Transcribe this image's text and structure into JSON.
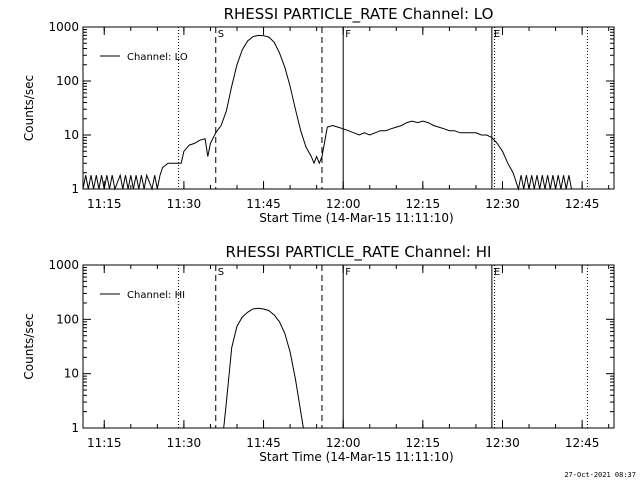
{
  "footer_stamp": "27-Oct-2021 08:37",
  "chart_data": [
    {
      "type": "line",
      "title": "RHESSI PARTICLE_RATE Channel: LO",
      "xlabel": "Start Time (14-Mar-15 11:11:10)",
      "ylabel": "Counts/sec",
      "yscale": "log",
      "xlim": [
        "11:11",
        "12:51"
      ],
      "ylim": [
        1,
        1000
      ],
      "x_ticks": [
        "11:15",
        "11:30",
        "11:45",
        "12:00",
        "12:15",
        "12:30",
        "12:45"
      ],
      "y_ticks": [
        "1",
        "10",
        "100",
        "1000"
      ],
      "legend": {
        "label": "Channel: LO",
        "position": "top-left"
      },
      "markers": [
        {
          "label": "",
          "time": "11:29",
          "style": "dotted"
        },
        {
          "label": "S",
          "time": "11:36",
          "style": "dashed"
        },
        {
          "label": "",
          "time": "11:56",
          "style": "dashed"
        },
        {
          "label": "F",
          "time": "12:00",
          "style": "solid"
        },
        {
          "label": "E",
          "time": "12:28",
          "style": "solid"
        },
        {
          "label": "",
          "time": "12:28.5",
          "style": "dotted"
        },
        {
          "label": "",
          "time": "12:46",
          "style": "dotted"
        }
      ],
      "series": [
        {
          "name": "Channel: LO",
          "points": [
            [
              "11:11",
              1
            ],
            [
              "11:11.5",
              1.8
            ],
            [
              "11:12",
              1
            ],
            [
              "11:12.5",
              1.8
            ],
            [
              "11:13",
              1
            ],
            [
              "11:13.5",
              1.8
            ],
            [
              "11:14",
              1
            ],
            [
              "11:14.5",
              1.8
            ],
            [
              "11:15",
              1
            ],
            [
              "11:15.5",
              1.8
            ],
            [
              "11:16",
              1
            ],
            [
              "11:16.5",
              1.8
            ],
            [
              "11:17",
              1
            ],
            [
              "11:18",
              1.8
            ],
            [
              "11:18.5",
              1
            ],
            [
              "11:19",
              1.8
            ],
            [
              "11:19.5",
              1
            ],
            [
              "11:20",
              1.8
            ],
            [
              "11:20.5",
              1
            ],
            [
              "11:21",
              1.8
            ],
            [
              "11:21.5",
              1
            ],
            [
              "11:22",
              1.8
            ],
            [
              "11:22.5",
              1
            ],
            [
              "11:23",
              1.8
            ],
            [
              "11:24",
              1
            ],
            [
              "11:24.5",
              1.8
            ],
            [
              "11:25",
              1
            ],
            [
              "11:25.5",
              1.8
            ],
            [
              "11:26",
              2.5
            ],
            [
              "11:27",
              3
            ],
            [
              "11:28",
              3
            ],
            [
              "11:29",
              3
            ],
            [
              "11:29.5",
              3
            ],
            [
              "11:30",
              5
            ],
            [
              "11:31",
              6.5
            ],
            [
              "11:32",
              7
            ],
            [
              "11:33",
              8
            ],
            [
              "11:34",
              8.5
            ],
            [
              "11:34.5",
              4
            ],
            [
              "11:35",
              7
            ],
            [
              "11:36",
              11
            ],
            [
              "11:37",
              15
            ],
            [
              "11:38",
              28
            ],
            [
              "11:39",
              80
            ],
            [
              "11:40",
              200
            ],
            [
              "11:41",
              380
            ],
            [
              "11:42",
              550
            ],
            [
              "11:43",
              660
            ],
            [
              "11:44",
              700
            ],
            [
              "11:45",
              690
            ],
            [
              "11:46",
              650
            ],
            [
              "11:47",
              520
            ],
            [
              "11:48",
              330
            ],
            [
              "11:49",
              180
            ],
            [
              "11:50",
              80
            ],
            [
              "11:51",
              30
            ],
            [
              "11:52",
              12
            ],
            [
              "11:53",
              6
            ],
            [
              "11:54",
              4
            ],
            [
              "11:54.5",
              3
            ],
            [
              "11:55",
              4
            ],
            [
              "11:55.5",
              3
            ],
            [
              "11:56",
              4
            ],
            [
              "11:57",
              14
            ],
            [
              "11:58",
              15
            ],
            [
              "11:59",
              14
            ],
            [
              "12:00",
              13
            ],
            [
              "12:01",
              12
            ],
            [
              "12:02",
              11
            ],
            [
              "12:03",
              10
            ],
            [
              "12:04",
              11
            ],
            [
              "12:05",
              10
            ],
            [
              "12:06",
              11
            ],
            [
              "12:07",
              12
            ],
            [
              "12:08",
              12
            ],
            [
              "12:09",
              13
            ],
            [
              "12:10",
              14
            ],
            [
              "12:11",
              15
            ],
            [
              "12:12",
              17
            ],
            [
              "12:13",
              18
            ],
            [
              "12:14",
              17
            ],
            [
              "12:15",
              18
            ],
            [
              "12:16",
              17
            ],
            [
              "12:17",
              15
            ],
            [
              "12:18",
              14
            ],
            [
              "12:19",
              13
            ],
            [
              "12:20",
              12
            ],
            [
              "12:21",
              12
            ],
            [
              "12:22",
              11
            ],
            [
              "12:23",
              11
            ],
            [
              "12:24",
              11
            ],
            [
              "12:25",
              11
            ],
            [
              "12:26",
              10
            ],
            [
              "12:27",
              10
            ],
            [
              "12:28",
              9
            ],
            [
              "12:29",
              7
            ],
            [
              "12:30",
              5
            ],
            [
              "12:31",
              3
            ],
            [
              "12:32",
              2
            ],
            [
              "12:33",
              1
            ],
            [
              "12:33.5",
              1.8
            ],
            [
              "12:34",
              1
            ],
            [
              "12:34.5",
              1.8
            ],
            [
              "12:35",
              1
            ],
            [
              "12:35.5",
              1.8
            ],
            [
              "12:36",
              1
            ],
            [
              "12:36.5",
              1.8
            ],
            [
              "12:37",
              1
            ],
            [
              "12:37.5",
              1.8
            ],
            [
              "12:38",
              1
            ],
            [
              "12:38.5",
              1.8
            ],
            [
              "12:39",
              1
            ],
            [
              "12:39.5",
              1.8
            ],
            [
              "12:40",
              1
            ],
            [
              "12:40.5",
              1.8
            ],
            [
              "12:41",
              1
            ],
            [
              "12:41.5",
              1.8
            ],
            [
              "12:42",
              1
            ],
            [
              "12:42.5",
              1.8
            ],
            [
              "12:43",
              1
            ]
          ]
        }
      ]
    },
    {
      "type": "line",
      "title": "RHESSI PARTICLE_RATE Channel: HI",
      "xlabel": "Start Time (14-Mar-15 11:11:10)",
      "ylabel": "Counts/sec",
      "yscale": "log",
      "xlim": [
        "11:11",
        "12:51"
      ],
      "ylim": [
        1,
        1000
      ],
      "x_ticks": [
        "11:15",
        "11:30",
        "11:45",
        "12:00",
        "12:15",
        "12:30",
        "12:45"
      ],
      "y_ticks": [
        "1",
        "10",
        "100",
        "1000"
      ],
      "legend": {
        "label": "Channel: HI",
        "position": "top-left"
      },
      "markers": [
        {
          "label": "",
          "time": "11:29",
          "style": "dotted"
        },
        {
          "label": "S",
          "time": "11:36",
          "style": "dashed"
        },
        {
          "label": "",
          "time": "11:56",
          "style": "dashed"
        },
        {
          "label": "F",
          "time": "12:00",
          "style": "solid"
        },
        {
          "label": "E",
          "time": "12:28",
          "style": "solid"
        },
        {
          "label": "",
          "time": "12:28.5",
          "style": "dotted"
        },
        {
          "label": "",
          "time": "12:46",
          "style": "dotted"
        }
      ],
      "series": [
        {
          "name": "Channel: HI",
          "points": [
            [
              "11:37.5",
              1
            ],
            [
              "11:38",
              3
            ],
            [
              "11:39",
              30
            ],
            [
              "11:40",
              75
            ],
            [
              "11:41",
              110
            ],
            [
              "11:42",
              135
            ],
            [
              "11:43",
              155
            ],
            [
              "11:44",
              160
            ],
            [
              "11:45",
              155
            ],
            [
              "11:46",
              145
            ],
            [
              "11:47",
              120
            ],
            [
              "11:48",
              90
            ],
            [
              "11:49",
              55
            ],
            [
              "11:50",
              25
            ],
            [
              "11:51",
              8
            ],
            [
              "11:52",
              2
            ],
            [
              "11:52.5",
              1
            ]
          ]
        }
      ]
    }
  ]
}
